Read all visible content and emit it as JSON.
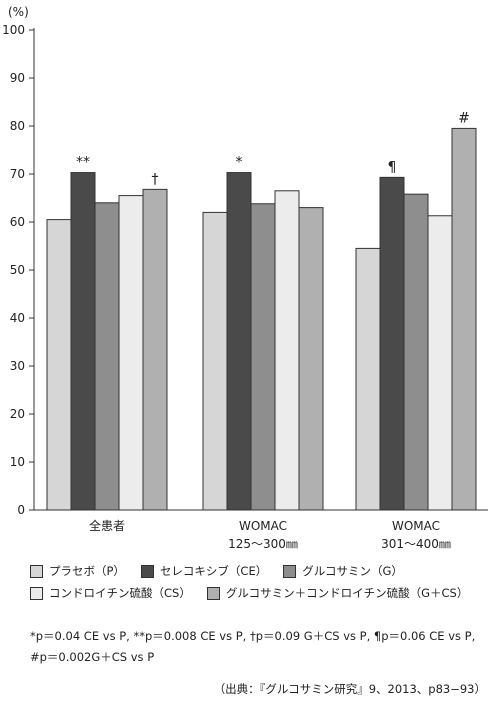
{
  "chart_data": {
    "type": "bar",
    "ylabel": "(%)",
    "ylim": [
      0,
      100
    ],
    "yticks": [
      0,
      10,
      20,
      30,
      40,
      50,
      60,
      70,
      80,
      90,
      100
    ],
    "categories": [
      {
        "line1": "全患者",
        "line2": ""
      },
      {
        "line1": "WOMAC",
        "line2": "125～300㎜"
      },
      {
        "line1": "WOMAC",
        "line2": "301～400㎜"
      }
    ],
    "series": [
      {
        "name": "プラセボ（P）",
        "color": "#d6d6d6",
        "values": [
          60.5,
          62.0,
          54.5
        ]
      },
      {
        "name": "セレコキシブ（CE）",
        "color": "#4a4a4a",
        "values": [
          70.3,
          70.3,
          69.3
        ]
      },
      {
        "name": "グルコサミン（G）",
        "color": "#8e8e8e",
        "values": [
          64.0,
          63.8,
          65.8
        ]
      },
      {
        "name": "コンドロイチン硫酸（CS）",
        "color": "#ececec",
        "values": [
          65.5,
          66.5,
          61.3
        ]
      },
      {
        "name": "グルコサミン＋コンドロイチン硫酸（G＋CS）",
        "color": "#b0b0b0",
        "values": [
          66.8,
          63.0,
          79.5
        ]
      }
    ],
    "annotations": [
      {
        "group": 0,
        "series": 1,
        "text": "**"
      },
      {
        "group": 0,
        "series": 4,
        "text": "†"
      },
      {
        "group": 1,
        "series": 1,
        "text": "*"
      },
      {
        "group": 2,
        "series": 1,
        "text": "¶"
      },
      {
        "group": 2,
        "series": 4,
        "text": "#"
      }
    ]
  },
  "notes": {
    "line1": "*p＝0.04 CE vs P, **p＝0.008 CE vs P, †p＝0.09 G＋CS vs P, ¶p＝0.06 CE vs P,",
    "line2": "#p＝0.002G＋CS vs P"
  },
  "source": "（出典：『グルコサミン研究』9、2013、p83−93）"
}
